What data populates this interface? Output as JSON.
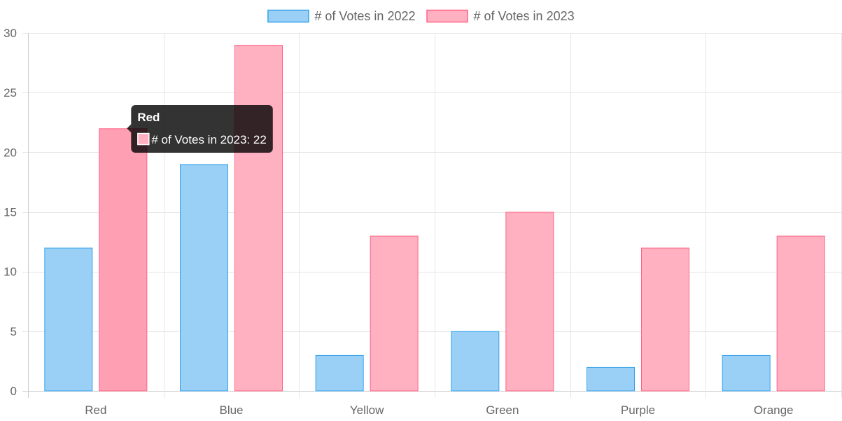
{
  "chart_data": {
    "type": "bar",
    "categories": [
      "Red",
      "Blue",
      "Yellow",
      "Green",
      "Purple",
      "Orange"
    ],
    "series": [
      {
        "name": "# of Votes in 2022",
        "values": [
          12,
          19,
          3,
          5,
          2,
          3
        ],
        "fill": "#9ad0f5",
        "stroke": "#36a2eb"
      },
      {
        "name": "# of Votes in 2023",
        "values": [
          22,
          29,
          13,
          15,
          12,
          13
        ],
        "fill": "#ffb1c1",
        "stroke": "#ff6384",
        "hover_fill": "#ff9fb4"
      }
    ],
    "ylim": [
      0,
      30
    ],
    "yticks": [
      0,
      5,
      10,
      15,
      20,
      25,
      30
    ],
    "grid": true,
    "legend_position": "top",
    "tooltip": {
      "title": "Red",
      "label": "# of Votes in 2023: 22",
      "series_index": 1,
      "category_index": 0
    }
  }
}
